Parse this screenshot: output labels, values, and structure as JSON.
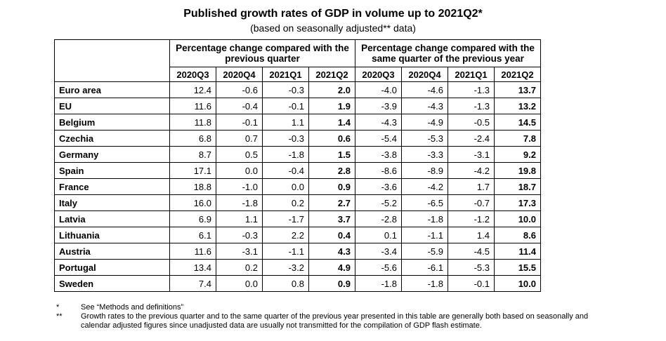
{
  "title": "Published growth rates of GDP in volume up to 2021Q2*",
  "subtitle": "(based on seasonally adjusted** data)",
  "groups": [
    "Percentage change compared with the previous quarter",
    "Percentage change compared with the same quarter of the previous year"
  ],
  "quarters": [
    "2020Q3",
    "2020Q4",
    "2021Q1",
    "2021Q2",
    "2020Q3",
    "2020Q4",
    "2021Q1",
    "2021Q2"
  ],
  "rows": [
    {
      "country": "Euro area",
      "values": [
        "12.4",
        "-0.6",
        "-0.3",
        "2.0",
        "-4.0",
        "-4.6",
        "-1.3",
        "13.7"
      ]
    },
    {
      "country": "EU",
      "values": [
        "11.6",
        "-0.4",
        "-0.1",
        "1.9",
        "-3.9",
        "-4.3",
        "-1.3",
        "13.2"
      ]
    },
    {
      "country": "Belgium",
      "values": [
        "11.8",
        "-0.1",
        "1.1",
        "1.4",
        "-4.3",
        "-4.9",
        "-0.5",
        "14.5"
      ]
    },
    {
      "country": "Czechia",
      "values": [
        "6.8",
        "0.7",
        "-0.3",
        "0.6",
        "-5.4",
        "-5.3",
        "-2.4",
        "7.8"
      ]
    },
    {
      "country": "Germany",
      "values": [
        "8.7",
        "0.5",
        "-1.8",
        "1.5",
        "-3.8",
        "-3.3",
        "-3.1",
        "9.2"
      ]
    },
    {
      "country": "Spain",
      "values": [
        "17.1",
        "0.0",
        "-0.4",
        "2.8",
        "-8.6",
        "-8.9",
        "-4.2",
        "19.8"
      ]
    },
    {
      "country": "France",
      "values": [
        "18.8",
        "-1.0",
        "0.0",
        "0.9",
        "-3.6",
        "-4.2",
        "1.7",
        "18.7"
      ]
    },
    {
      "country": "Italy",
      "values": [
        "16.0",
        "-1.8",
        "0.2",
        "2.7",
        "-5.2",
        "-6.5",
        "-0.7",
        "17.3"
      ]
    },
    {
      "country": "Latvia",
      "values": [
        "6.9",
        "1.1",
        "-1.7",
        "3.7",
        "-2.8",
        "-1.8",
        "-1.2",
        "10.0"
      ]
    },
    {
      "country": "Lithuania",
      "values": [
        "6.1",
        "-0.3",
        "2.2",
        "0.4",
        "0.1",
        "-1.1",
        "1.4",
        "8.6"
      ]
    },
    {
      "country": "Austria",
      "values": [
        "11.6",
        "-3.1",
        "-1.1",
        "4.3",
        "-3.4",
        "-5.9",
        "-4.5",
        "11.4"
      ]
    },
    {
      "country": "Portugal",
      "values": [
        "13.4",
        "0.2",
        "-3.2",
        "4.9",
        "-5.6",
        "-6.1",
        "-5.3",
        "15.5"
      ]
    },
    {
      "country": "Sweden",
      "values": [
        "7.4",
        "0.0",
        "0.8",
        "0.9",
        "-1.8",
        "-1.8",
        "-0.1",
        "10.0"
      ]
    }
  ],
  "notes": [
    {
      "mark": "*",
      "text": "See “Methods and definitions”"
    },
    {
      "mark": "**",
      "text": "Growth rates to the previous quarter and to the same quarter of the previous year presented in this table are generally both based on seasonally and calendar adjusted figures since unadjusted data are usually not transmitted for the compilation of GDP flash estimate."
    }
  ]
}
